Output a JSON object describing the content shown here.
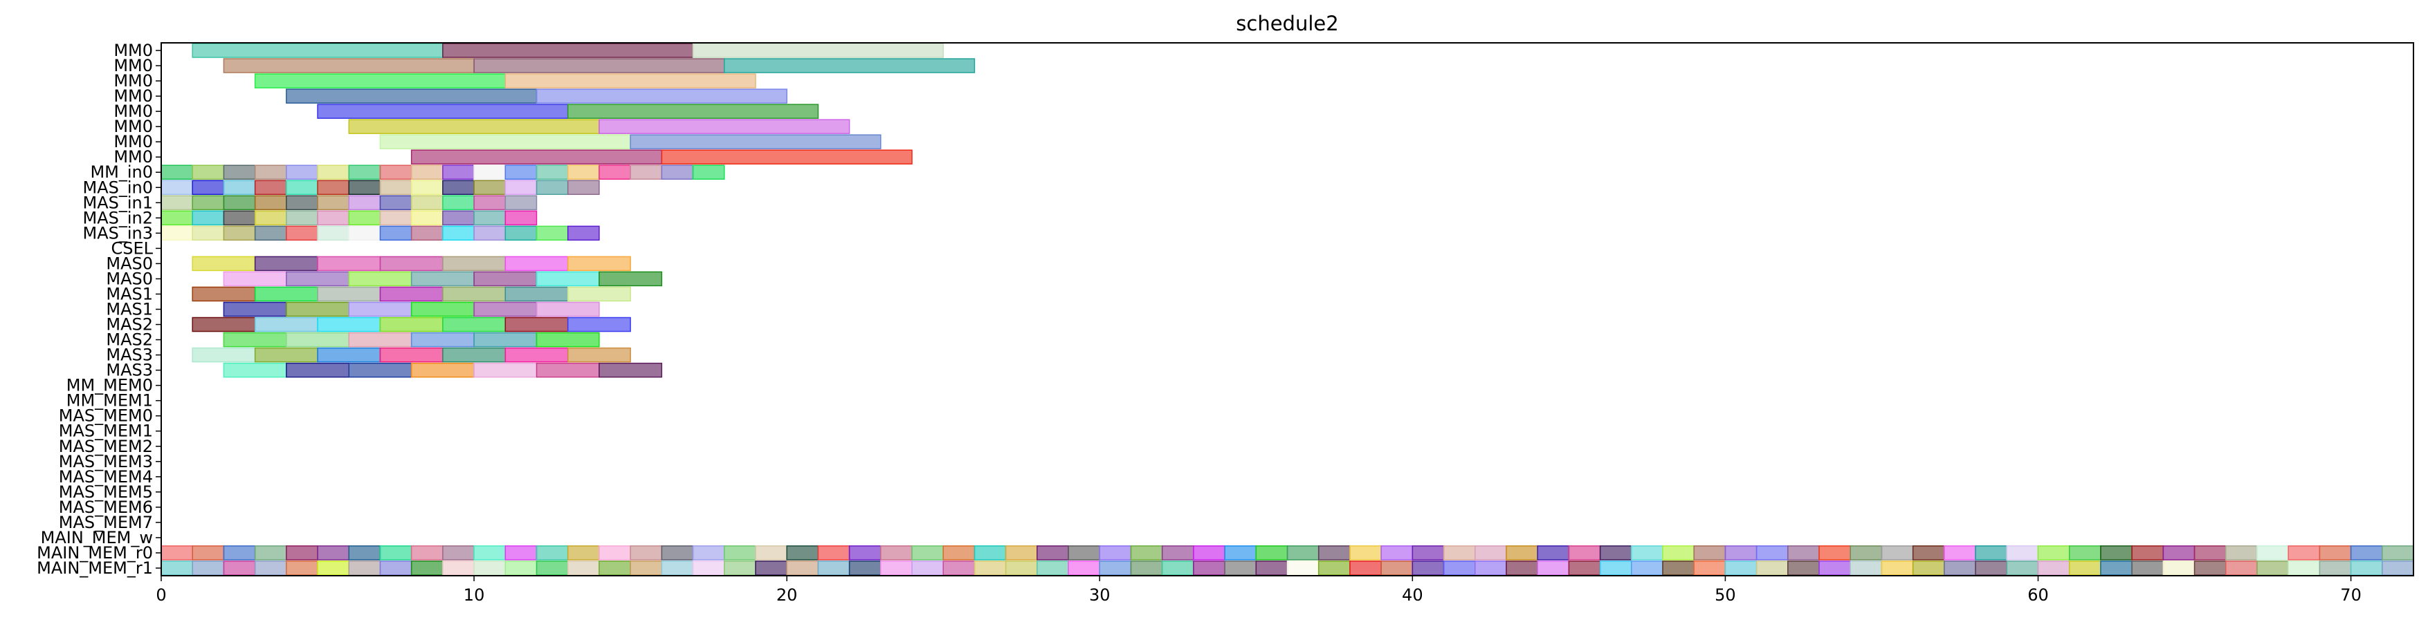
{
  "chart_data": {
    "type": "gantt",
    "title": "schedule2",
    "xlabel": "",
    "ylabel": "",
    "xlim": [
      0,
      72
    ],
    "xticks": [
      0,
      10,
      20,
      30,
      40,
      50,
      60,
      70
    ],
    "xtick_labels": [
      "0",
      "10",
      "20",
      "30",
      "40",
      "50",
      "60",
      "70"
    ],
    "grid": false,
    "rows": [
      "MM0",
      "MM0",
      "MM0",
      "MM0",
      "MM0",
      "MM0",
      "MM0",
      "MM0",
      "MM_in0",
      "MAS_in0",
      "MAS_in1",
      "MAS_in2",
      "MAS_in3",
      "CSEL",
      "MAS0",
      "MAS0",
      "MAS1",
      "MAS1",
      "MAS2",
      "MAS2",
      "MAS3",
      "MAS3",
      "MM_MEM0",
      "MM_MEM1",
      "MAS_MEM0",
      "MAS_MEM1",
      "MAS_MEM2",
      "MAS_MEM3",
      "MAS_MEM4",
      "MAS_MEM5",
      "MAS_MEM6",
      "MAS_MEM7",
      "MAIN_MEM_w",
      "MAIN_MEM_r0",
      "MAIN_MEM_r1"
    ],
    "bars": [
      {
        "row": 0,
        "segments": [
          [
            1,
            9,
            "#3cc4a4"
          ],
          [
            9,
            17,
            "#6d1e46"
          ],
          [
            17,
            25,
            "#c6dcc0"
          ]
        ]
      },
      {
        "row": 1,
        "segments": [
          [
            2,
            10,
            "#b07a5a"
          ],
          [
            10,
            18,
            "#8a5a6e"
          ],
          [
            18,
            26,
            "#22a49a"
          ]
        ]
      },
      {
        "row": 2,
        "segments": [
          [
            3,
            11,
            "#22ee44"
          ],
          [
            11,
            19,
            "#e8b47a"
          ]
        ]
      },
      {
        "row": 3,
        "segments": [
          [
            4,
            12,
            "#2a5c98"
          ],
          [
            12,
            20,
            "#7a86e8"
          ]
        ]
      },
      {
        "row": 4,
        "segments": [
          [
            5,
            13,
            "#3434e8"
          ],
          [
            13,
            21,
            "#2a9a2a"
          ]
        ]
      },
      {
        "row": 5,
        "segments": [
          [
            6,
            14,
            "#c4c418"
          ],
          [
            14,
            22,
            "#cc64e4"
          ]
        ]
      },
      {
        "row": 6,
        "segments": [
          [
            7,
            15,
            "#c4f4a4"
          ],
          [
            15,
            23,
            "#6886d0"
          ]
        ]
      },
      {
        "row": 7,
        "segments": [
          [
            8,
            16,
            "#a4286c"
          ],
          [
            16,
            24,
            "#ee2a14"
          ]
        ]
      },
      {
        "row": 8,
        "segments": [
          [
            0,
            1,
            "#20c458"
          ],
          [
            1,
            2,
            "#90c64a"
          ],
          [
            2,
            3,
            "#5a6a6a"
          ],
          [
            3,
            4,
            "#b08a7a"
          ],
          [
            4,
            5,
            "#8a8ae8"
          ],
          [
            5,
            6,
            "#d8e070"
          ],
          [
            6,
            7,
            "#2ec870"
          ],
          [
            7,
            8,
            "#e06060"
          ],
          [
            8,
            9,
            "#e0b084"
          ],
          [
            9,
            10,
            "#8030d0"
          ],
          [
            10,
            11,
            "#f0f0f0"
          ],
          [
            11,
            12,
            "#4c7aec"
          ],
          [
            12,
            13,
            "#58c0a0"
          ],
          [
            13,
            14,
            "#f0c060"
          ],
          [
            14,
            15,
            "#f02c8c"
          ],
          [
            15,
            16,
            "#c68c9c"
          ],
          [
            16,
            17,
            "#7c74c4"
          ],
          [
            17,
            18,
            "#1cdc58"
          ]
        ]
      },
      {
        "row": 9,
        "segments": [
          [
            0,
            1,
            "#a0c0f0"
          ],
          [
            1,
            2,
            "#1c1cd4"
          ],
          [
            2,
            3,
            "#60c0d8"
          ],
          [
            3,
            4,
            "#b42424"
          ],
          [
            4,
            5,
            "#2cdcac"
          ],
          [
            5,
            6,
            "#b8301c"
          ],
          [
            6,
            7,
            "#142c2c"
          ],
          [
            7,
            8,
            "#ccb48c"
          ],
          [
            8,
            9,
            "#e8f088"
          ],
          [
            9,
            10,
            "#1c1c6c"
          ],
          [
            10,
            11,
            "#8c8c2c"
          ],
          [
            11,
            12,
            "#d8a0f0"
          ],
          [
            12,
            13,
            "#50a0a0"
          ],
          [
            13,
            14,
            "#8c6a8c"
          ]
        ]
      },
      {
        "row": 10,
        "segments": [
          [
            0,
            1,
            "#b0c890"
          ],
          [
            1,
            2,
            "#58a838"
          ],
          [
            2,
            3,
            "#2c8c2c"
          ],
          [
            3,
            4,
            "#9c6c1c"
          ],
          [
            4,
            5,
            "#3c4c4c"
          ],
          [
            5,
            6,
            "#b08a4c"
          ],
          [
            6,
            7,
            "#c080e0"
          ],
          [
            7,
            8,
            "#4c4cac"
          ],
          [
            8,
            9,
            "#c8d070"
          ],
          [
            9,
            10,
            "#1cdc6c"
          ],
          [
            10,
            11,
            "#c04c9c"
          ],
          [
            11,
            12,
            "#8888a8"
          ]
        ]
      },
      {
        "row": 11,
        "segments": [
          [
            0,
            1,
            "#5ce82c"
          ],
          [
            1,
            2,
            "#18c4c4"
          ],
          [
            2,
            3,
            "#3c3c3c"
          ],
          [
            3,
            4,
            "#ccc82c"
          ],
          [
            4,
            5,
            "#8ab89a"
          ],
          [
            5,
            6,
            "#d88ab8"
          ],
          [
            6,
            7,
            "#6ce82c"
          ],
          [
            7,
            8,
            "#dcb4a4"
          ],
          [
            8,
            9,
            "#f0f07c"
          ],
          [
            9,
            10,
            "#6c4cac"
          ],
          [
            10,
            11,
            "#58a8a8"
          ],
          [
            11,
            12,
            "#e81cac"
          ]
        ]
      },
      {
        "row": 12,
        "segments": [
          [
            0,
            1,
            "#f8f8c0"
          ],
          [
            1,
            2,
            "#d8e48c"
          ],
          [
            2,
            3,
            "#a8a44c"
          ],
          [
            3,
            4,
            "#4c6c7c"
          ],
          [
            4,
            5,
            "#e83c3c"
          ],
          [
            5,
            6,
            "#c8e8d8"
          ],
          [
            6,
            7,
            "#f0f0f0"
          ],
          [
            7,
            8,
            "#3c6cdc"
          ],
          [
            8,
            9,
            "#b05a7c"
          ],
          [
            9,
            10,
            "#1cd8f0"
          ],
          [
            10,
            11,
            "#9c8cdc"
          ],
          [
            11,
            12,
            "#1cac9c"
          ],
          [
            12,
            13,
            "#4ce84c"
          ],
          [
            13,
            14,
            "#5c1cd0"
          ]
        ]
      },
      {
        "row": 13,
        "segments": []
      },
      {
        "row": 14,
        "segments": [
          [
            1,
            3,
            "#d8d82c"
          ],
          [
            3,
            5,
            "#4c1c6c"
          ],
          [
            5,
            7,
            "#dc4cac"
          ],
          [
            7,
            9,
            "#c840a0"
          ],
          [
            9,
            11,
            "#a89c7c"
          ],
          [
            11,
            13,
            "#ec4cec"
          ],
          [
            13,
            15,
            "#f8a83c"
          ]
        ]
      },
      {
        "row": 15,
        "segments": [
          [
            2,
            4,
            "#ec98ec"
          ],
          [
            4,
            6,
            "#8a5ab8"
          ],
          [
            6,
            8,
            "#8ce83c"
          ],
          [
            8,
            10,
            "#5ca0a0"
          ],
          [
            10,
            12,
            "#8a3c8a"
          ],
          [
            12,
            14,
            "#3ce8d8"
          ],
          [
            14,
            16,
            "#1c8c1c"
          ]
        ]
      },
      {
        "row": 16,
        "segments": [
          [
            1,
            3,
            "#9c3c0c"
          ],
          [
            3,
            5,
            "#0cdc3c"
          ],
          [
            5,
            7,
            "#9cac9c"
          ],
          [
            7,
            9,
            "#b01cb0"
          ],
          [
            9,
            11,
            "#8cac5c"
          ],
          [
            11,
            13,
            "#3c8c8c"
          ],
          [
            13,
            15,
            "#c8e88c"
          ]
        ]
      },
      {
        "row": 17,
        "segments": [
          [
            2,
            4,
            "#1c1c9c"
          ],
          [
            4,
            6,
            "#6c9c1c"
          ],
          [
            6,
            8,
            "#9c8cf0"
          ],
          [
            8,
            10,
            "#1cdc1c"
          ],
          [
            10,
            12,
            "#9c4ca8"
          ],
          [
            12,
            14,
            "#dc8cdc"
          ]
        ]
      },
      {
        "row": 18,
        "segments": [
          [
            1,
            3,
            "#6c0c0c"
          ],
          [
            3,
            5,
            "#6cc4dc"
          ],
          [
            5,
            7,
            "#1cdcf0"
          ],
          [
            7,
            9,
            "#7cdc1c"
          ],
          [
            9,
            11,
            "#1cdc3c"
          ],
          [
            11,
            13,
            "#8c0c1c"
          ],
          [
            13,
            15,
            "#3c3cf0"
          ]
        ]
      },
      {
        "row": 19,
        "segments": [
          [
            2,
            4,
            "#3cdc3c"
          ],
          [
            4,
            6,
            "#8cdc8c"
          ],
          [
            6,
            8,
            "#dc9cac"
          ],
          [
            8,
            10,
            "#5c8cdc"
          ],
          [
            10,
            12,
            "#3c9cac"
          ],
          [
            12,
            14,
            "#1cdc1c"
          ]
        ]
      },
      {
        "row": 20,
        "segments": [
          [
            1,
            3,
            "#ace8ce"
          ],
          [
            3,
            5,
            "#7cac2c"
          ],
          [
            5,
            7,
            "#1c7cdc"
          ],
          [
            7,
            9,
            "#f01c7c"
          ],
          [
            9,
            11,
            "#2c8c6c"
          ],
          [
            11,
            13,
            "#f01c9c"
          ],
          [
            13,
            15,
            "#cc8c3c"
          ]
        ]
      },
      {
        "row": 21,
        "segments": [
          [
            2,
            4,
            "#4cf0bc"
          ],
          [
            4,
            6,
            "#1c1c8c"
          ],
          [
            6,
            8,
            "#1c3c9c"
          ],
          [
            8,
            10,
            "#f08c1c"
          ],
          [
            10,
            12,
            "#e8a8dc"
          ],
          [
            12,
            14,
            "#cc3c8c"
          ],
          [
            14,
            16,
            "#5c1c5c"
          ]
        ]
      },
      {
        "row": 22,
        "segments": []
      },
      {
        "row": 23,
        "segments": []
      },
      {
        "row": 24,
        "segments": []
      },
      {
        "row": 25,
        "segments": []
      },
      {
        "row": 26,
        "segments": []
      },
      {
        "row": 27,
        "segments": []
      },
      {
        "row": 28,
        "segments": []
      },
      {
        "row": 29,
        "segments": []
      },
      {
        "row": 30,
        "segments": []
      },
      {
        "row": 31,
        "segments": []
      },
      {
        "row": 32,
        "segments": []
      },
      {
        "row": 33,
        "segments": "alt0"
      },
      {
        "row": 34,
        "segments": "alt1"
      }
    ],
    "mem_palette_r0": [
      "#f06060",
      "#d85c3c",
      "#3c6cc8",
      "#6ca87c",
      "#8c1c5c",
      "#7c2c8c",
      "#1c5c8c",
      "#1cd88c",
      "#d86c8c",
      "#9c6c8c",
      "#4cecc4",
      "#d83cf0",
      "#3cc8a8",
      "#c8a82c",
      "#f8a8d8",
      "#c88c8c",
      "#5c5c6c",
      "#9c9cec",
      "#6cc86c",
      "#d8c8a8",
      "#1c4c3c",
      "#f03c3c",
      "#6c1cc8",
      "#c86c8c",
      "#6cc86c",
      "#d86c2c",
      "#1cc8b8",
      "#d8a83c",
      "#6c1c6c",
      "#5c5c5c",
      "#8c6cf0",
      "#6cac3c",
      "#8c3c8c",
      "#c81cec",
      "#1c8cec",
      "#1cc81c",
      "#3c9c5c",
      "#5c3c5c",
      "#f0c83c",
      "#ac5cf0",
      "#6c1cac",
      "#d8a898",
      "#d89cb8",
      "#c88c1c",
      "#3c1cac",
      "#d83c8c",
      "#3c1c5c",
      "#5cd8d8",
      "#acf03c",
      "#a86c5c",
      "#8c5cd8",
      "#6c6cf0",
      "#8c5c8c",
      "#f03c1c",
      "#6c8c5c",
      "#9c9c9c",
      "#6c2c1c",
      "#ec5cf0",
      "#1c9c9c",
      "#d8c8f0",
      "#8cec3c",
      "#3cc83c",
      "#1c5c1c",
      "#9c1c1c",
      "#8c1c8c",
      "#9c2c5c",
      "#a8a88c",
      "#c8f0d8"
    ],
    "mem_palette_r1": [
      "#5cc8c8",
      "#7c9cc8",
      "#c83c9c",
      "#8c9cc8",
      "#d86c3c",
      "#ccf01c",
      "#ac9c9c",
      "#7c7cdc",
      "#1c8c1c",
      "#f0c8c8",
      "#cce8c8",
      "#9cf08c",
      "#2cc84c",
      "#d8c8ac",
      "#6cac2c",
      "#c89c5c",
      "#8cc8d8",
      "#ecc8f0",
      "#8cc87c",
      "#3c1c5c",
      "#c89c7c",
      "#6cacc8",
      "#1c3c6c",
      "#f08cec",
      "#c89cf0",
      "#c84c9c",
      "#d8c86c",
      "#c8c85c",
      "#5cc8a8",
      "#f05cf0",
      "#5c8cdc",
      "#5c8c5c",
      "#3cc89c",
      "#8c1c8c",
      "#6c6c6c",
      "#5c1c5c",
      "#f8f8e8",
      "#7cac1c",
      "#e81c1c",
      "#c85c3c",
      "#4c1c9c",
      "#5c5cf0",
      "#8c6cf0",
      "#6c1c3c",
      "#d86cf0",
      "#8c1c3c",
      "#3cc8f0",
      "#5c9cf0",
      "#5c3c1c",
      "#f0683c",
      "#5cc8dc",
      "#c8c88c",
      "#5c3c3c",
      "#9c3ce8",
      "#acc8c8",
      "#f0c83c",
      "#acac1c",
      "#6c6c9c",
      "#5c3c5c",
      "#5cac9c",
      "#d89cc8",
      "#c8c81c",
      "#1c6c9c",
      "#5c5c5c",
      "#f0f0c8",
      "#6c3c3c",
      "#dc5c5c",
      "#8cac5c",
      "#c8f0c8",
      "#8ca898"
    ]
  }
}
